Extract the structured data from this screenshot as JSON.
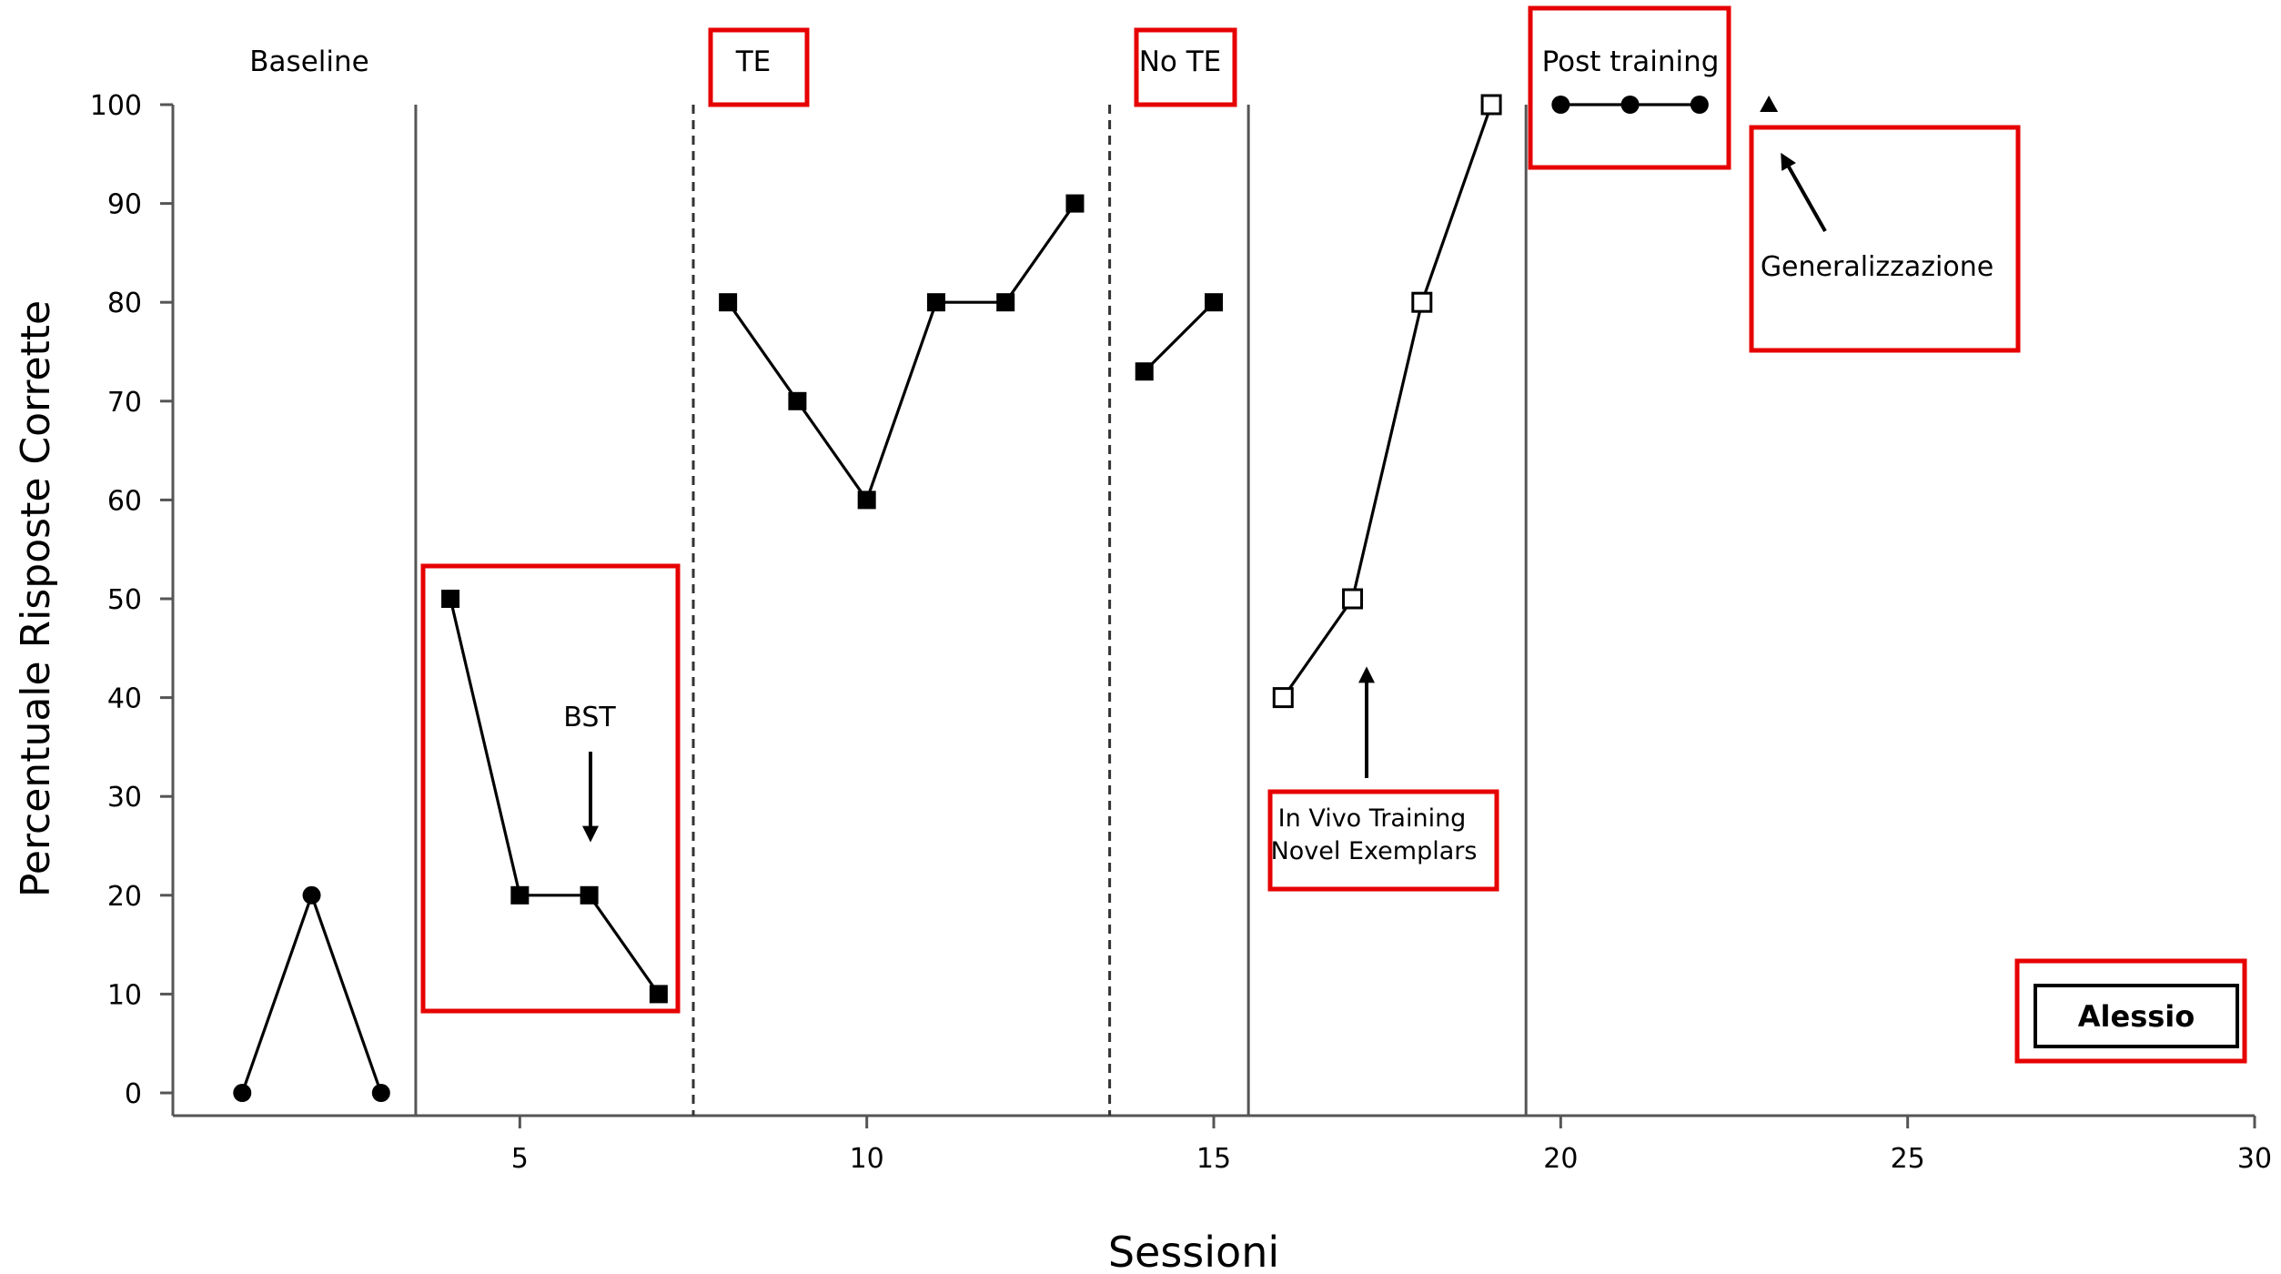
{
  "chart_data": {
    "type": "line",
    "xlabel": "Sessioni",
    "ylabel": "Percentuale Risposte Corrette",
    "xlim": [
      0,
      30
    ],
    "ylim": [
      0,
      100
    ],
    "x_ticks": [
      5,
      10,
      15,
      20,
      25,
      30
    ],
    "y_ticks": [
      0,
      10,
      20,
      30,
      40,
      50,
      60,
      70,
      80,
      90,
      100
    ],
    "grid": false,
    "phase_labels": [
      {
        "id": "baseline",
        "text": "Baseline"
      },
      {
        "id": "te",
        "text": "TE"
      },
      {
        "id": "note",
        "text": "No TE"
      },
      {
        "id": "post",
        "text": "Post training"
      }
    ],
    "phase_lines": [
      {
        "x": 3.5,
        "style": "solid"
      },
      {
        "x": 7.5,
        "style": "dashed"
      },
      {
        "x": 13.5,
        "style": "dashed"
      },
      {
        "x": 15.5,
        "style": "solid"
      },
      {
        "x": 19.5,
        "style": "solid"
      }
    ],
    "series": [
      {
        "marker": "circle-filled",
        "x": [
          1,
          2,
          3
        ],
        "values": [
          0,
          20,
          0
        ]
      },
      {
        "marker": "square-filled",
        "x": [
          4,
          5,
          6,
          7
        ],
        "values": [
          50,
          20,
          20,
          10
        ]
      },
      {
        "marker": "square-filled",
        "x": [
          8,
          9,
          10,
          11,
          12,
          13
        ],
        "values": [
          80,
          70,
          60,
          80,
          80,
          90
        ]
      },
      {
        "marker": "square-filled",
        "x": [
          14,
          15
        ],
        "values": [
          73,
          80
        ]
      },
      {
        "marker": "square-open",
        "x": [
          16,
          17,
          18,
          19
        ],
        "values": [
          40,
          50,
          80,
          100
        ]
      },
      {
        "marker": "circle-filled",
        "x": [
          20,
          21,
          22
        ],
        "values": [
          100,
          100,
          100
        ]
      },
      {
        "marker": "triangle-filled",
        "x": [
          23
        ],
        "values": [
          100
        ]
      }
    ],
    "annotations": {
      "bst": "BST",
      "in_vivo_line1": "In Vivo Training",
      "in_vivo_line2": "Novel Exemplars",
      "generalizzazione": "Generalizzazione",
      "participant": "Alessio"
    },
    "colors": {
      "highlight_box": "#e60000",
      "data": "#000000",
      "axis": "#555555"
    }
  }
}
